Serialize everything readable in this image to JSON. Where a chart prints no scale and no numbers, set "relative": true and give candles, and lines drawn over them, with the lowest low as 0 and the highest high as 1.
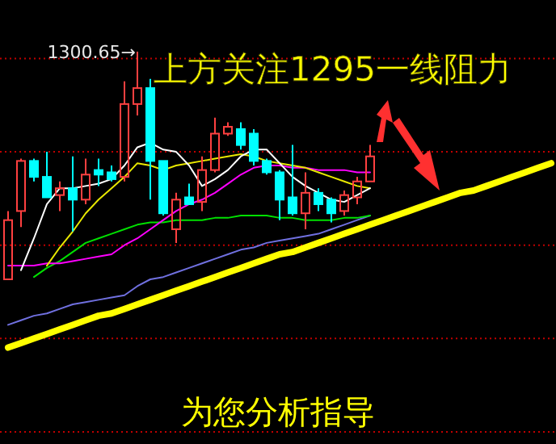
{
  "chart_data": {
    "type": "candlestick",
    "relative": true,
    "title": "上方关注1295一线阻力",
    "annotations": [
      {
        "text": "1300.65→",
        "y": 1
      },
      "为您分析指导"
    ],
    "categories": [
      null,
      null,
      null,
      null,
      null,
      null,
      null,
      null,
      null,
      null,
      null,
      null,
      null,
      null,
      null,
      null,
      null,
      null,
      null,
      null,
      null,
      null,
      null,
      null,
      null,
      null,
      null,
      null,
      null,
      null,
      null,
      null,
      null,
      null,
      null,
      null,
      null,
      null,
      null,
      null,
      null,
      null,
      null
    ],
    "ohlc": [
      [
        0,
        0.3,
        0,
        0.26
      ],
      [
        0.3,
        0.53,
        0.23,
        0.52
      ],
      [
        0.52,
        0.53,
        0.43,
        0.45
      ],
      [
        0.45,
        0.56,
        0.36,
        0.36
      ],
      [
        0.37,
        0.43,
        0.3,
        0.4
      ],
      [
        0.4,
        0.54,
        0.21,
        0.35
      ],
      [
        0.35,
        0.53,
        0.33,
        0.46
      ],
      [
        0.48,
        0.53,
        0.41,
        0.46
      ],
      [
        0.47,
        0.5,
        0.43,
        0.44
      ],
      [
        0.45,
        0.87,
        0.43,
        0.77
      ],
      [
        0.77,
        1,
        0.72,
        0.84
      ],
      [
        0.84,
        0.88,
        0.35,
        0.52
      ],
      [
        0.52,
        0.52,
        0.28,
        0.29
      ],
      [
        0.22,
        0.38,
        0.16,
        0.35
      ],
      [
        0.36,
        0.42,
        0.33,
        0.33
      ],
      [
        0.34,
        0.54,
        0.3,
        0.48
      ],
      [
        0.48,
        0.71,
        0.47,
        0.64
      ],
      [
        0.64,
        0.69,
        0.63,
        0.67
      ],
      [
        0.66,
        0.69,
        0.57,
        0.59
      ],
      [
        0.64,
        0.66,
        0.5,
        0.52
      ],
      [
        0.52,
        0.53,
        0.46,
        0.47
      ],
      [
        0.47,
        0.48,
        0.26,
        0.35
      ],
      [
        0.36,
        0.59,
        0.28,
        0.29
      ],
      [
        0.29,
        0.47,
        0.22,
        0.38
      ],
      [
        0.38,
        0.4,
        0.3,
        0.33
      ],
      [
        0.35,
        0.36,
        0.25,
        0.29
      ],
      [
        0.3,
        0.39,
        0.28,
        0.37
      ],
      [
        0.36,
        0.45,
        0.33,
        0.43
      ],
      [
        0.43,
        0.59,
        0.43,
        0.54
      ],
      null,
      null,
      null,
      null,
      null,
      null,
      null,
      null,
      null,
      null,
      null,
      null,
      null,
      null
    ],
    "colors": [
      "#ff4040",
      "#ff4040",
      "#00ffff",
      "#00ffff",
      "#ff4040",
      "#00ffff",
      "#ff4040",
      "#00ffff",
      "#00ffff",
      "#ff4040",
      "#ff4040",
      "#00ffff",
      "#00ffff",
      "#ff4040",
      "#00ffff",
      "#ff4040",
      "#ff4040",
      "#ff4040",
      "#00ffff",
      "#00ffff",
      "#00ffff",
      "#00ffff",
      "#00ffff",
      "#ff4040",
      "#00ffff",
      "#00ffff",
      "#ff4040",
      "#ff4040",
      "#ff4040",
      null,
      null,
      null,
      null,
      null,
      null,
      null,
      null,
      null,
      null,
      null,
      null,
      null,
      null
    ],
    "series": [
      {
        "type": "line",
        "color": "#7070e0",
        "values": [
          -0.2,
          -0.18,
          -0.16,
          -0.15,
          -0.13,
          -0.11,
          -0.1,
          -0.09,
          -0.08,
          -0.07,
          -0.03,
          0,
          0.01,
          0.03,
          0.05,
          0.07,
          0.09,
          0.11,
          0.13,
          0.14,
          0.16,
          0.17,
          0.18,
          0.19,
          0.2,
          0.22,
          0.24,
          0.26,
          0.28,
          null,
          null,
          null,
          null,
          null,
          null,
          null,
          null,
          null,
          null,
          null,
          null,
          null,
          null
        ]
      },
      {
        "type": "line",
        "color": "#00e000",
        "values": [
          null,
          null,
          0.01,
          0.05,
          0.08,
          0.12,
          0.16,
          0.18,
          0.2,
          0.22,
          0.24,
          0.25,
          0.25,
          0.26,
          0.26,
          0.26,
          0.27,
          0.27,
          0.28,
          0.28,
          0.28,
          0.27,
          0.27,
          0.26,
          0.26,
          0.26,
          0.27,
          0.27,
          0.28,
          null,
          null,
          null,
          null,
          null,
          null,
          null,
          null,
          null,
          null,
          null,
          null,
          null,
          null
        ]
      },
      {
        "type": "line",
        "color": "#ff00ff",
        "values": [
          0.06,
          0.06,
          0.06,
          0.07,
          0.07,
          0.08,
          0.09,
          0.1,
          0.11,
          0.15,
          0.18,
          0.22,
          0.26,
          0.3,
          0.33,
          0.35,
          0.38,
          0.42,
          0.46,
          0.49,
          0.5,
          0.5,
          0.49,
          0.49,
          0.48,
          0.48,
          0.48,
          0.47,
          0.47,
          null,
          null,
          null,
          null,
          null,
          null,
          null,
          null,
          null,
          null,
          null,
          null,
          null,
          null
        ]
      },
      {
        "type": "line",
        "color": "#e8e800",
        "values": [
          null,
          null,
          null,
          0.06,
          0.14,
          0.21,
          0.29,
          0.35,
          0.4,
          0.45,
          0.51,
          0.5,
          0.48,
          0.5,
          0.51,
          0.52,
          0.53,
          0.54,
          0.55,
          0.54,
          0.52,
          0.51,
          0.5,
          0.49,
          0.47,
          0.45,
          0.43,
          0.41,
          0.4,
          null,
          null,
          null,
          null,
          null,
          null,
          null,
          null,
          null,
          null,
          null,
          null,
          null,
          null
        ]
      },
      {
        "type": "line",
        "color": "#ffffff",
        "values": [
          null,
          0.04,
          0.18,
          0.33,
          0.4,
          0.4,
          0.41,
          0.42,
          0.44,
          0.5,
          0.58,
          0.6,
          0.57,
          0.56,
          0.5,
          0.41,
          0.44,
          0.48,
          0.54,
          0.57,
          0.57,
          0.51,
          0.45,
          0.41,
          0.38,
          0.35,
          0.34,
          0.37,
          0.4,
          null,
          null,
          null,
          null,
          null,
          null,
          null,
          null,
          null,
          null,
          null,
          null,
          null,
          null
        ]
      },
      {
        "type": "line",
        "color": "#ffff00",
        "values": [
          -0.3,
          -0.28,
          -0.26,
          -0.24,
          -0.22,
          -0.2,
          -0.18,
          -0.16,
          -0.15,
          -0.13,
          -0.11,
          -0.09,
          -0.07,
          -0.05,
          -0.03,
          -0.01,
          0.01,
          0.03,
          0.05,
          0.07,
          0.09,
          0.11,
          0.12,
          0.14,
          0.16,
          0.18,
          0.2,
          0.22,
          0.24,
          0.26,
          0.28,
          0.3,
          0.32,
          0.34,
          0.36,
          0.38,
          0.39,
          0.41,
          0.43,
          0.45,
          0.47,
          0.49,
          0.51
        ]
      }
    ],
    "ref_lines": [
      {
        "axis": "y",
        "value": 0.97,
        "color": "#c00000",
        "line_style": "dotted"
      },
      {
        "axis": "y",
        "value": 0.56,
        "color": "#c00000",
        "line_style": "dotted"
      },
      {
        "axis": "y",
        "value": 0.15,
        "color": "#c00000",
        "line_style": "dotted"
      },
      {
        "axis": "y",
        "value": -0.26,
        "color": "#c00000",
        "line_style": "dotted"
      },
      {
        "axis": "y",
        "value": -0.67,
        "color": "#c00000",
        "line_style": "dotted"
      }
    ]
  }
}
